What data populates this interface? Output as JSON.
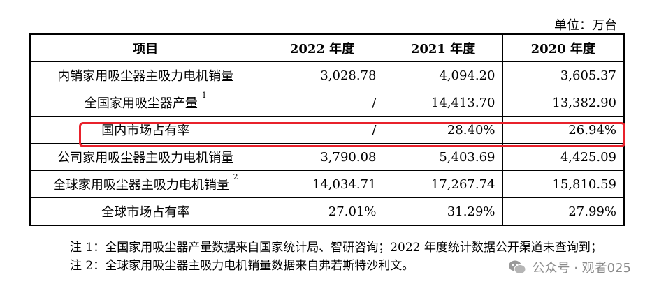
{
  "unit_label": "单位：万台",
  "table": {
    "headers": [
      "项目",
      "2022 年度",
      "2021 年度",
      "2020 年度"
    ],
    "rows": [
      {
        "label": "内销家用吸尘器主吸力电机销量",
        "sup": "",
        "values": [
          "3,028.78",
          "4,094.20",
          "3,605.37"
        ]
      },
      {
        "label": "全国家用吸尘器产量",
        "sup": "1",
        "values": [
          "/",
          "14,413.70",
          "13,382.90"
        ]
      },
      {
        "label": "国内市场占有率",
        "sup": "",
        "values": [
          "/",
          "28.40%",
          "26.94%"
        ]
      },
      {
        "label": "公司家用吸尘器主吸力电机销量",
        "sup": "",
        "values": [
          "3,790.08",
          "5,403.69",
          "4,425.09"
        ]
      },
      {
        "label": "全球家用吸尘器主吸力电机销量",
        "sup": "2",
        "values": [
          "14,034.71",
          "17,267.74",
          "15,810.59"
        ]
      },
      {
        "label": "全球市场占有率",
        "sup": "",
        "values": [
          "27.01%",
          "31.29%",
          "27.99%"
        ]
      }
    ]
  },
  "highlight_color": "#e8212b",
  "notes": {
    "note1": "注 1：全国家用吸尘器产量数据来自国家统计局、智研咨询；2022 年度统计数据公开渠道未查询到；",
    "note2": "注 2：全球家用吸尘器主吸力电机销量数据来自弗若斯特沙利文。"
  },
  "watermark": {
    "text": "公众号 · 观者025",
    "icon": "wechat-icon"
  }
}
